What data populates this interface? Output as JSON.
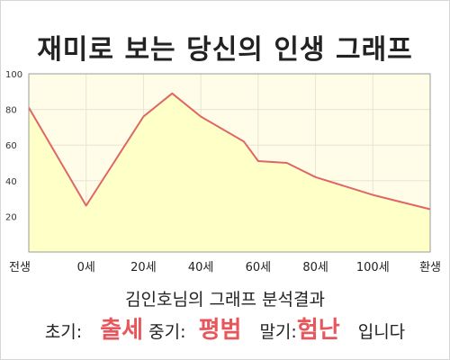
{
  "header": {
    "title": "재미로 보는 당신의 인생 그래프"
  },
  "chart_data": {
    "type": "area",
    "title": "재미로 보는 당신의 인생 그래프",
    "xlabel": "",
    "ylabel": "",
    "x_ticks": [
      "전생",
      "0세",
      "20세",
      "40세",
      "60세",
      "80세",
      "100세",
      "환생"
    ],
    "y_ticks": [
      20,
      40,
      60,
      80,
      100
    ],
    "ylim": [
      0,
      100
    ],
    "grid": true,
    "series": [
      {
        "x": [
          "전생",
          "0세",
          "20세",
          "30세",
          "40세",
          "55세",
          "60세",
          "70세",
          "80세",
          "100세",
          "환생"
        ],
        "values": [
          81,
          26,
          76,
          89,
          76,
          62,
          51,
          50,
          42,
          32,
          24
        ]
      }
    ],
    "colors": {
      "fill": "#ffffc8",
      "line": "#e06666",
      "plot_bg": "#fffde8",
      "grid": "#e6e6d4"
    }
  },
  "footer": {
    "subtitle": "김인호님의 그래프 분석결과",
    "early_label": "초기:",
    "early_value": "출세",
    "mid_label": "중기:",
    "mid_value": "평범",
    "late_label": "말기:",
    "late_value": "험난",
    "ending": "입니다"
  }
}
